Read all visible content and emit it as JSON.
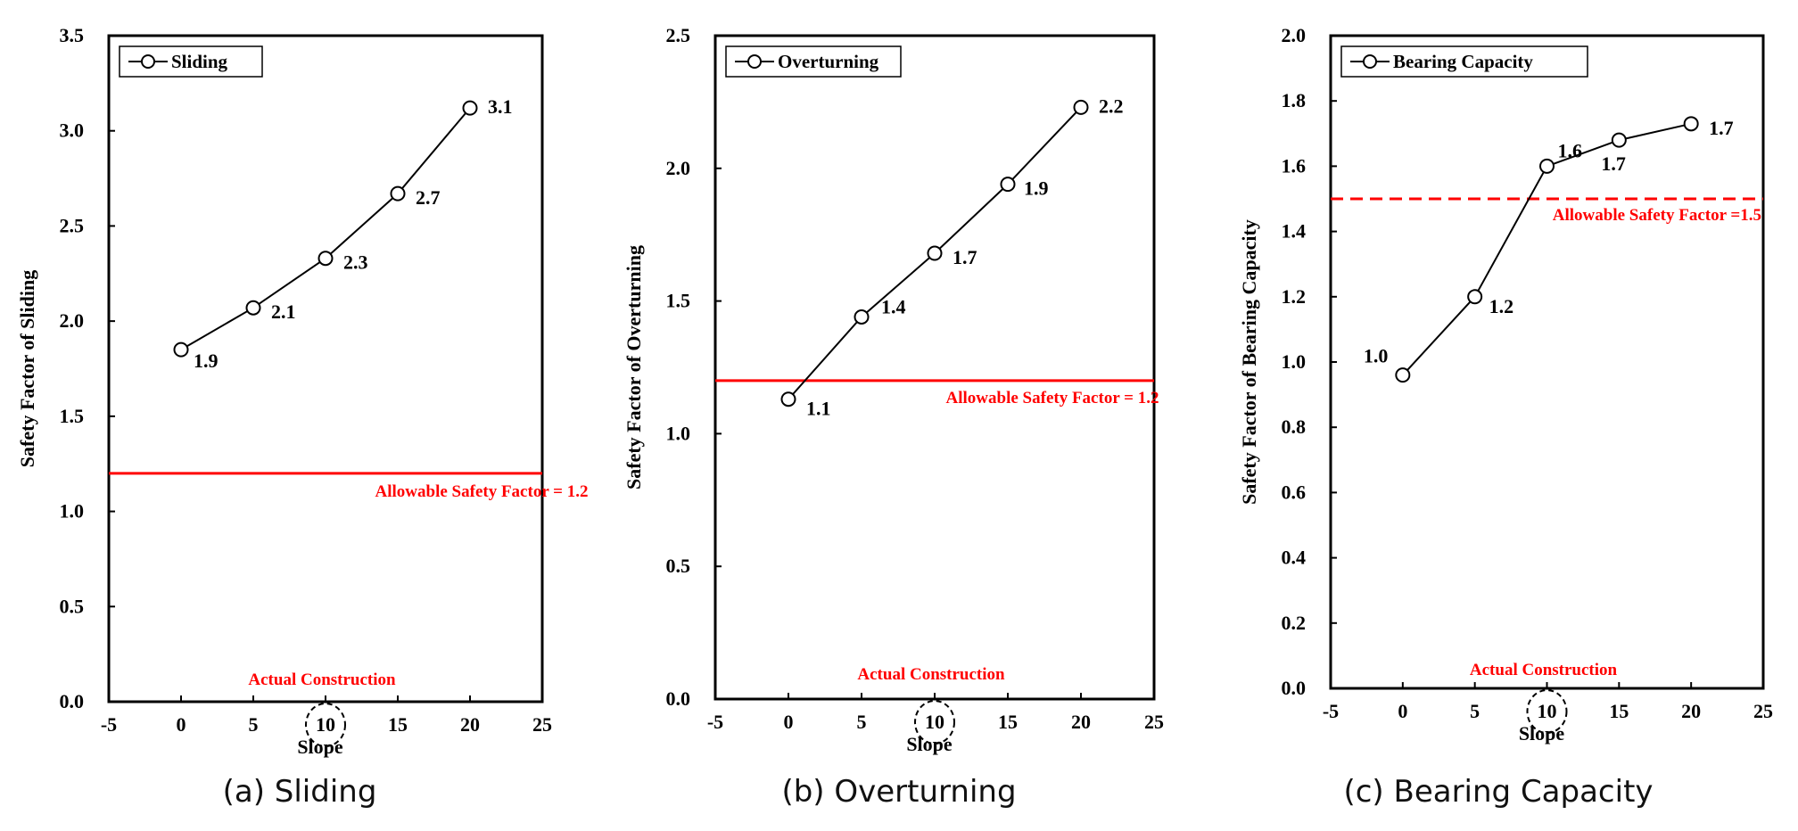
{
  "colors": {
    "series": "#000000",
    "reference": "#ff0000",
    "frame": "#000000"
  },
  "captions": [
    "(a) Sliding",
    "(b) Overturning",
    "(c) Bearing Capacity"
  ],
  "chart_data": [
    {
      "type": "line",
      "legend": "Sliding",
      "legend_position": "top-left",
      "ylabel": "Safety Factor of  Sliding",
      "xlabel": "Slope",
      "xlim": [
        -5,
        25
      ],
      "ylim": [
        0,
        3.5
      ],
      "xticks": [
        "-5",
        "0",
        "5",
        "10",
        "15",
        "20",
        "25"
      ],
      "yticks": [
        "0.0",
        "0.5",
        "1.0",
        "1.5",
        "2.0",
        "2.5",
        "3.0",
        "3.5"
      ],
      "x": [
        0,
        5,
        10,
        15,
        20
      ],
      "y": [
        1.85,
        2.07,
        2.33,
        2.67,
        3.12
      ],
      "point_labels": [
        "1.9",
        "2.1",
        "2.3",
        "2.7",
        "3.1"
      ],
      "reference": {
        "value": 1.2,
        "style": "solid",
        "label": "Allowable  Safety Factor = 1.2"
      },
      "annotation": {
        "text": "Actual Construction",
        "x": 10
      }
    },
    {
      "type": "line",
      "legend": "Overturning",
      "legend_position": "top-left",
      "ylabel": "Safety Factor of Overturning",
      "xlabel": "Slope",
      "xlim": [
        -5,
        25
      ],
      "ylim": [
        0,
        2.5
      ],
      "xticks": [
        "-5",
        "0",
        "5",
        "10",
        "15",
        "20",
        "25"
      ],
      "yticks": [
        "0.0",
        "0.5",
        "1.0",
        "1.5",
        "2.0",
        "2.5"
      ],
      "x": [
        0,
        5,
        10,
        15,
        20
      ],
      "y": [
        1.13,
        1.44,
        1.68,
        1.94,
        2.23
      ],
      "point_labels": [
        "1.1",
        "1.4",
        "1.7",
        "1.9",
        "2.2"
      ],
      "reference": {
        "value": 1.2,
        "style": "solid",
        "label": "Allowable  Safety Factor = 1.2"
      },
      "annotation": {
        "text": "Actual Construction",
        "x": 10
      }
    },
    {
      "type": "line",
      "legend": "Bearing Capacity",
      "legend_position": "top-left",
      "ylabel": "Safety Factor of  Bearing Capacity",
      "xlabel": "Slope",
      "xlim": [
        -5,
        25
      ],
      "ylim": [
        0,
        2.0
      ],
      "xticks": [
        "-5",
        "0",
        "5",
        "10",
        "15",
        "20",
        "25"
      ],
      "yticks": [
        "0.0",
        "0.2",
        "0.4",
        "0.6",
        "0.8",
        "1.0",
        "1.2",
        "1.4",
        "1.6",
        "1.8",
        "2.0"
      ],
      "x": [
        0,
        5,
        10,
        15,
        20
      ],
      "y": [
        0.96,
        1.2,
        1.6,
        1.68,
        1.73
      ],
      "point_labels": [
        "1.0",
        "1.2",
        "1.6",
        "1.7",
        "1.7"
      ],
      "reference": {
        "value": 1.5,
        "style": "dashed",
        "label": "Allowable  Safety Factor =1.5"
      },
      "annotation": {
        "text": "Actual Construction",
        "x": 10
      }
    }
  ]
}
